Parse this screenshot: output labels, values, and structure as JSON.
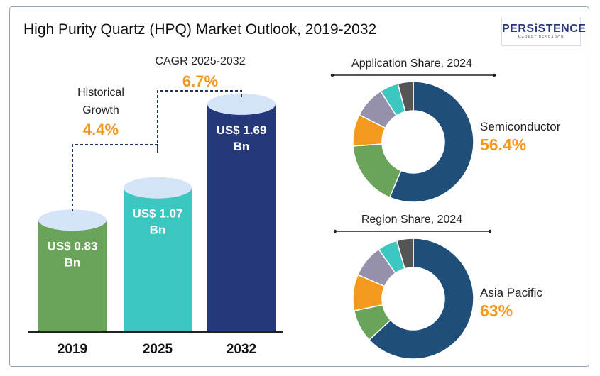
{
  "title": "High Purity Quartz (HPQ) Market Outlook, 2019-2032",
  "logo": {
    "brand": "PERSiSTENCE",
    "tagline": "MARKET RESEARCH"
  },
  "annotations": {
    "historical": {
      "label_line1": "Historical",
      "label_line2": "Growth",
      "value": "4.4%"
    },
    "cagr": {
      "label": "CAGR 2025-2032",
      "value": "6.7%"
    }
  },
  "colors": {
    "accent_orange": "#f39a1e",
    "bar_2019": "#6aa35a",
    "bar_2025": "#3cc7c1",
    "bar_2032": "#24387a",
    "cap": "#d6e4f7",
    "donut": [
      "#1f4e79",
      "#6aa35a",
      "#f39a1e",
      "#9590ab",
      "#3cc7c1",
      "#555555"
    ]
  },
  "chart_data": [
    {
      "type": "bar",
      "categories": [
        "2019",
        "2025",
        "2032"
      ],
      "values": [
        0.83,
        1.07,
        1.69
      ],
      "value_labels": [
        [
          "US$ 0.83",
          "Bn"
        ],
        [
          "US$ 1.07",
          "Bn"
        ],
        [
          "US$ 1.69",
          "Bn"
        ]
      ],
      "xlabel": "",
      "ylabel": "",
      "grid": false
    },
    {
      "type": "pie",
      "title": "Application Share, 2024",
      "highlight": {
        "label": "Semiconductor",
        "value": "56.4%"
      },
      "values": [
        56.4,
        17.5,
        8.5,
        8.5,
        5.0,
        4.1
      ]
    },
    {
      "type": "pie",
      "title": "Region Share, 2024",
      "highlight": {
        "label": "Asia Pacific",
        "value": "63%"
      },
      "values": [
        63,
        8.8,
        9.7,
        8.8,
        5.3,
        4.4
      ]
    }
  ]
}
